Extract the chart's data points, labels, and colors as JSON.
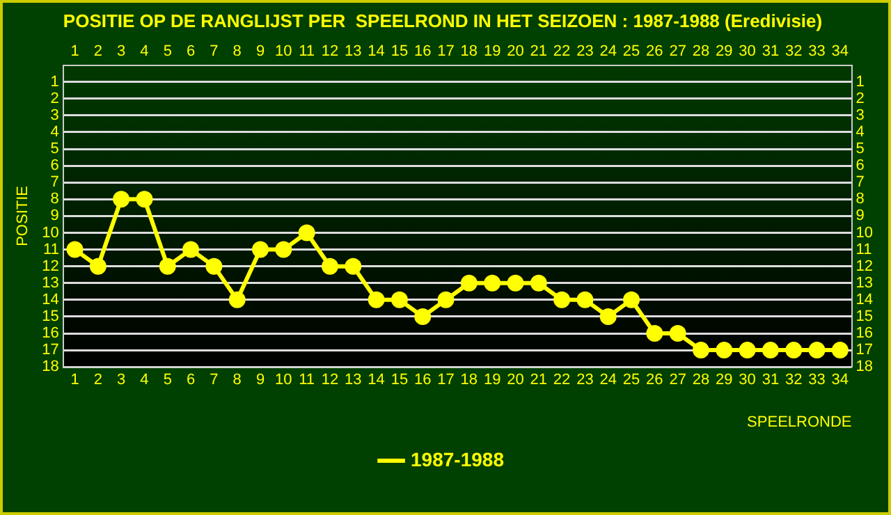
{
  "chart_data": {
    "type": "line",
    "title": "POSITIE OP DE RANGLIJST PER  SPEELROND IN HET SEIZOEN : 1987-1988 (Eredivisie)",
    "xlabel": "SPEELRONDE",
    "ylabel": "POSITIE",
    "x": [
      1,
      2,
      3,
      4,
      5,
      6,
      7,
      8,
      9,
      10,
      11,
      12,
      13,
      14,
      15,
      16,
      17,
      18,
      19,
      20,
      21,
      22,
      23,
      24,
      25,
      26,
      27,
      28,
      29,
      30,
      31,
      32,
      33,
      34
    ],
    "xlim": [
      0.5,
      34.5
    ],
    "xticks": [
      1,
      2,
      3,
      4,
      5,
      6,
      7,
      8,
      9,
      10,
      11,
      12,
      13,
      14,
      15,
      16,
      17,
      18,
      19,
      20,
      21,
      22,
      23,
      24,
      25,
      26,
      27,
      28,
      29,
      30,
      31,
      32,
      33,
      34
    ],
    "x2lim": [
      0.5,
      34.5
    ],
    "x2ticks": [
      1,
      2,
      3,
      4,
      5,
      6,
      7,
      8,
      9,
      10,
      11,
      12,
      13,
      14,
      15,
      16,
      17,
      18,
      19,
      20,
      21,
      22,
      23,
      24,
      25,
      26,
      27,
      28,
      29,
      30,
      31,
      32,
      33,
      34
    ],
    "ylim": [
      18,
      0
    ],
    "yticks": [
      1,
      2,
      3,
      4,
      5,
      6,
      7,
      8,
      9,
      10,
      11,
      12,
      13,
      14,
      15,
      16,
      17,
      18
    ],
    "y2lim": [
      18,
      0
    ],
    "y2ticks": [
      1,
      2,
      3,
      4,
      5,
      6,
      7,
      8,
      9,
      10,
      11,
      12,
      13,
      14,
      15,
      16,
      17,
      18
    ],
    "series": [
      {
        "name": "1987-1988",
        "color": "#ffff00",
        "values": [
          11,
          12,
          8,
          8,
          12,
          11,
          12,
          14,
          11,
          11,
          10,
          12,
          12,
          14,
          14,
          15,
          14,
          13,
          13,
          13,
          13,
          14,
          14,
          15,
          14,
          16,
          16,
          17,
          17,
          17,
          17,
          17,
          17,
          17
        ]
      }
    ],
    "grid": "y",
    "legend": "bottom",
    "marker": "circle",
    "line_style": "solid"
  }
}
